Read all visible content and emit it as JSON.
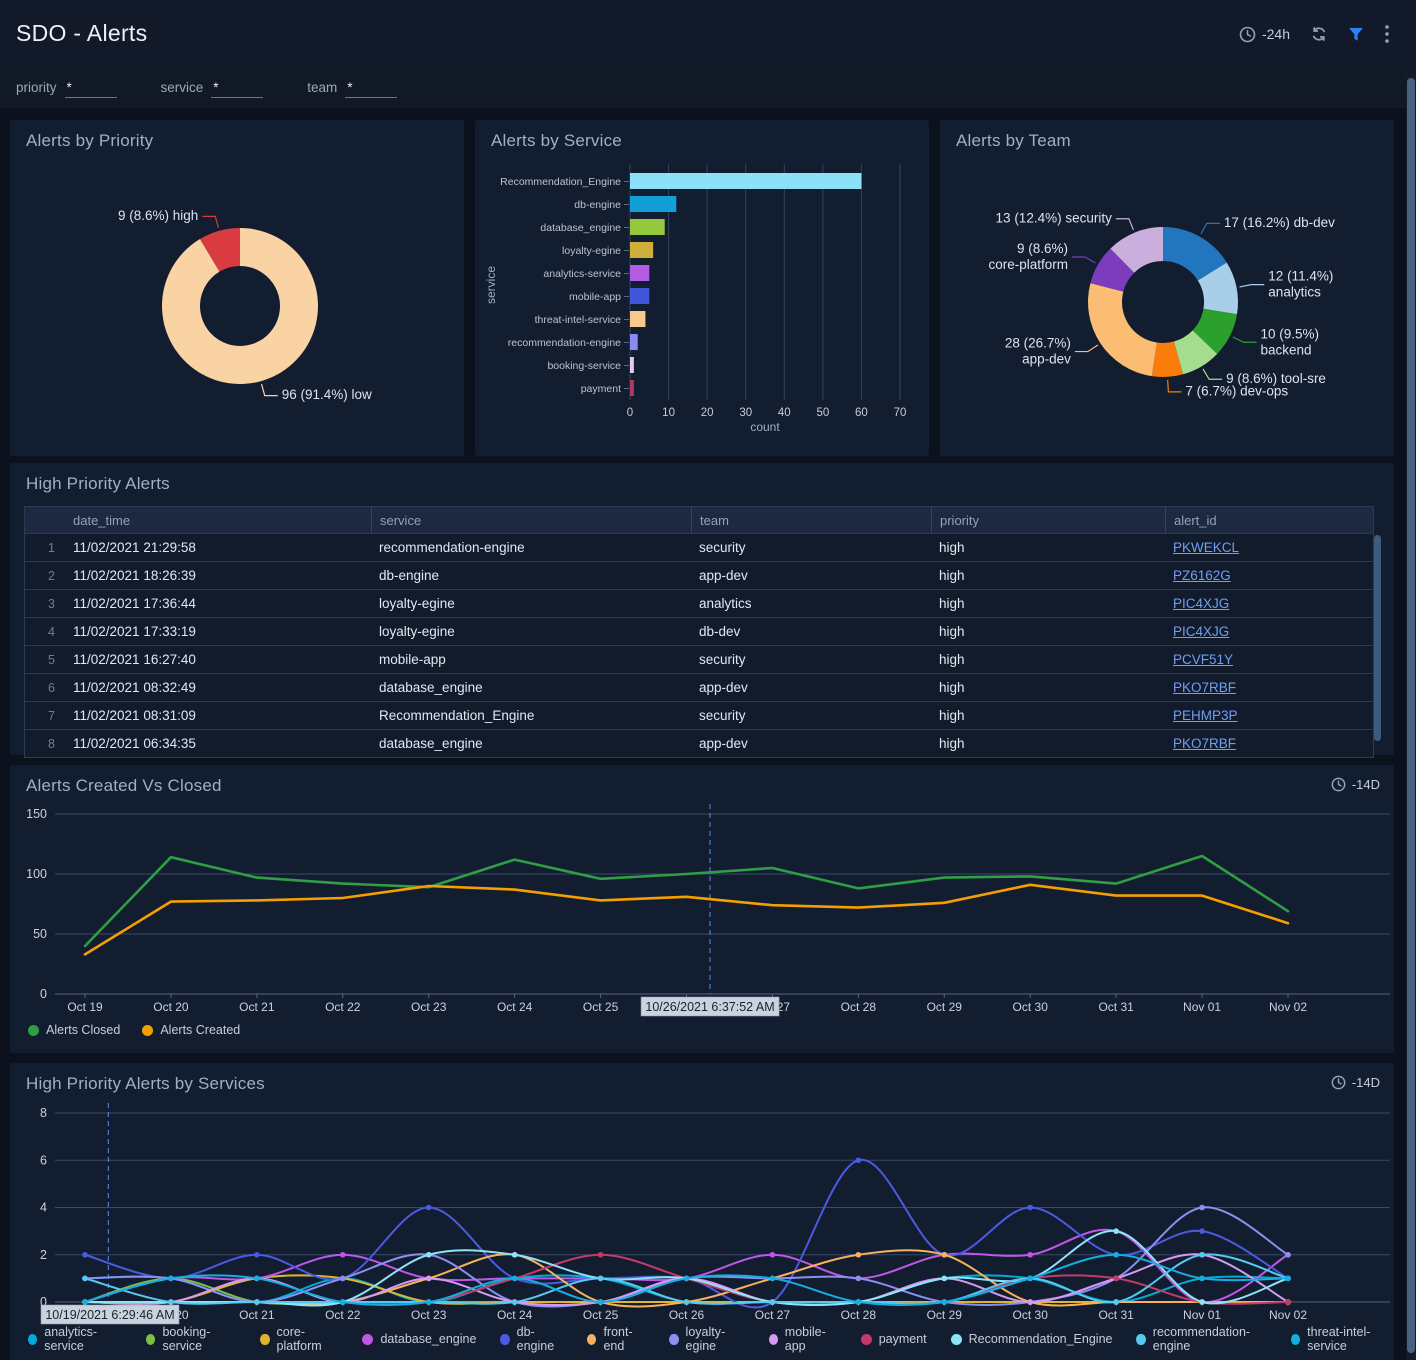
{
  "header": {
    "title": "SDO - Alerts",
    "time_range": "-24h"
  },
  "filters": [
    {
      "name": "priority",
      "label": "priority",
      "value": "*"
    },
    {
      "name": "service",
      "label": "service",
      "value": "*"
    },
    {
      "name": "team",
      "label": "team",
      "value": "*"
    }
  ],
  "table": {
    "title": "High Priority Alerts",
    "columns": [
      "date_time",
      "service",
      "team",
      "priority",
      "alert_id"
    ],
    "rows": [
      [
        "1",
        "11/02/2021 21:29:58",
        "recommendation-engine",
        "security",
        "high",
        "PKWEKCL"
      ],
      [
        "2",
        "11/02/2021 18:26:39",
        "db-engine",
        "app-dev",
        "high",
        "PZ6162G"
      ],
      [
        "3",
        "11/02/2021 17:36:44",
        "loyalty-egine",
        "analytics",
        "high",
        "PIC4XJG"
      ],
      [
        "4",
        "11/02/2021 17:33:19",
        "loyalty-egine",
        "db-dev",
        "high",
        "PIC4XJG"
      ],
      [
        "5",
        "11/02/2021 16:27:40",
        "mobile-app",
        "security",
        "high",
        "PCVF51Y"
      ],
      [
        "6",
        "11/02/2021 08:32:49",
        "database_engine",
        "app-dev",
        "high",
        "PKO7RBF"
      ],
      [
        "7",
        "11/02/2021 08:31:09",
        "Recommendation_Engine",
        "security",
        "high",
        "PEHMP3P"
      ],
      [
        "8",
        "11/02/2021 06:34:35",
        "database_engine",
        "app-dev",
        "high",
        "PKO7RBF"
      ]
    ]
  },
  "chart_data": [
    {
      "id": "priority_donut",
      "type": "pie",
      "title": "Alerts by Priority",
      "segments": [
        {
          "label": "96 (91.4%) low",
          "name": "low",
          "value": 96,
          "color": "#fad3a5"
        },
        {
          "label": "9 (8.6%) high",
          "name": "high",
          "value": 9,
          "color": "#d93b40"
        }
      ]
    },
    {
      "id": "service_bar",
      "type": "bar",
      "title": "Alerts by Service",
      "xlabel": "count",
      "ylabel": "service",
      "xlim": [
        0,
        70
      ],
      "xticks": [
        0,
        10,
        20,
        30,
        40,
        50,
        60,
        70
      ],
      "categories": [
        "Recommendation_Engine",
        "db-engine",
        "database_engine",
        "loyalty-egine",
        "analytics-service",
        "mobile-app",
        "threat-intel-service",
        "recommendation-engine",
        "booking-service",
        "payment"
      ],
      "values": [
        60,
        12,
        9,
        6,
        5,
        5,
        4,
        2,
        1,
        1
      ],
      "colors": [
        "#8ce0f8",
        "#129fd8",
        "#94c83d",
        "#cfae3a",
        "#b55ce5",
        "#4156d8",
        "#f8c98d",
        "#8a8af5",
        "#e3c8f2",
        "#b03a62"
      ]
    },
    {
      "id": "team_donut",
      "type": "pie",
      "title": "Alerts by Team",
      "segments": [
        {
          "label": "17 (16.2%) db-dev",
          "name": "db-dev",
          "value": 17,
          "color": "#2176bd"
        },
        {
          "label": "12 (11.4%)\nanalytics",
          "name": "analytics",
          "value": 12,
          "color": "#a9cfe8"
        },
        {
          "label": "10 (9.5%)\nbackend",
          "name": "backend",
          "value": 10,
          "color": "#2ca02c"
        },
        {
          "label": "9 (8.6%) tool-sre",
          "name": "tool-sre",
          "value": 9,
          "color": "#a5dd8f"
        },
        {
          "label": "7 (6.7%) dev-ops",
          "name": "dev-ops",
          "value": 7,
          "color": "#fa7d09"
        },
        {
          "label": "28 (26.7%)\napp-dev",
          "name": "app-dev",
          "value": 28,
          "color": "#fbbc74"
        },
        {
          "label": "9 (8.6%)\ncore-platform",
          "name": "core-platform",
          "value": 9,
          "color": "#7d3cbd"
        },
        {
          "label": "13 (12.4%) security",
          "name": "security",
          "value": 13,
          "color": "#c9aede"
        }
      ]
    },
    {
      "id": "created_closed",
      "type": "line",
      "title": "Alerts Created Vs Closed",
      "range_label": "-14D",
      "smooth": false,
      "markers": false,
      "ylim": [
        0,
        150
      ],
      "yticks": [
        0,
        50,
        100,
        150
      ],
      "x": [
        "Oct 19",
        "Oct 20",
        "Oct 21",
        "Oct 22",
        "Oct 23",
        "Oct 24",
        "Oct 25",
        "Oct 26",
        "Oct 27",
        "Oct 28",
        "Oct 29",
        "Oct 30",
        "Oct 31",
        "Nov 01",
        "Nov 02"
      ],
      "cursor": {
        "x_index": 7.274,
        "label": "10/26/2021 6:37:52 AM"
      },
      "series": [
        {
          "name": "Alerts Closed",
          "color": "#2f9e44",
          "values": [
            40,
            114,
            97,
            92,
            89,
            112,
            96,
            100,
            105,
            88,
            97,
            98,
            92,
            115,
            69
          ]
        },
        {
          "name": "Alerts Created",
          "color": "#f59f00",
          "values": [
            33,
            77,
            78,
            80,
            90,
            87,
            78,
            81,
            74,
            72,
            76,
            91,
            82,
            82,
            59
          ]
        }
      ]
    },
    {
      "id": "hp_services",
      "type": "line",
      "title": "High Priority Alerts by Services",
      "range_label": "-14D",
      "smooth": true,
      "markers": true,
      "ylim": [
        0,
        8
      ],
      "yticks": [
        0,
        2,
        4,
        6,
        8
      ],
      "x": [
        "Oct 19",
        "Oct 20",
        "Oct 21",
        "Oct 22",
        "Oct 23",
        "Oct 24",
        "Oct 25",
        "Oct 26",
        "Oct 27",
        "Oct 28",
        "Oct 29",
        "Oct 30",
        "Oct 31",
        "Nov 01",
        "Nov 02"
      ],
      "cursor": {
        "x_index": 0.271,
        "label": "10/19/2021 6:29:46 AM"
      },
      "series": [
        {
          "name": "analytics-service",
          "color": "#00acd7",
          "values": [
            1,
            1,
            0,
            1,
            0,
            1,
            1,
            0,
            0,
            0,
            1,
            1,
            0,
            1,
            1
          ]
        },
        {
          "name": "booking-service",
          "color": "#7bc144",
          "values": [
            0,
            1,
            0,
            0,
            0,
            0,
            0,
            0,
            0,
            0,
            0,
            0,
            0,
            0,
            0
          ]
        },
        {
          "name": "core-platform",
          "color": "#ddb52f",
          "values": [
            0,
            0,
            1,
            1,
            0,
            0,
            0,
            0,
            0,
            0,
            0,
            0,
            0,
            0,
            0
          ]
        },
        {
          "name": "database_engine",
          "color": "#c157e8",
          "values": [
            0,
            1,
            1,
            2,
            1,
            1,
            1,
            1,
            2,
            1,
            2,
            2,
            3,
            0,
            2
          ]
        },
        {
          "name": "db-engine",
          "color": "#4a5be0",
          "values": [
            2,
            1,
            2,
            1,
            4,
            1,
            1,
            1,
            0,
            6,
            2,
            4,
            2,
            3,
            1
          ]
        },
        {
          "name": "front-end",
          "color": "#f7b15c",
          "values": [
            0,
            0,
            0,
            0,
            1,
            2,
            0,
            0,
            1,
            2,
            2,
            0,
            0,
            0,
            0
          ]
        },
        {
          "name": "loyalty-egine",
          "color": "#8b8ff0",
          "values": [
            1,
            1,
            0,
            1,
            2,
            0,
            0,
            1,
            1,
            1,
            0,
            0,
            1,
            4,
            2
          ]
        },
        {
          "name": "mobile-app",
          "color": "#d79af2",
          "values": [
            0,
            0,
            1,
            0,
            1,
            0,
            0,
            1,
            0,
            0,
            1,
            0,
            1,
            2,
            0
          ]
        },
        {
          "name": "payment",
          "color": "#c23b68",
          "values": [
            0,
            0,
            0,
            0,
            0,
            1,
            2,
            1,
            0,
            0,
            0,
            1,
            1,
            0,
            0
          ]
        },
        {
          "name": "Recommendation_Engine",
          "color": "#8fe3f7",
          "values": [
            0,
            0,
            0,
            0,
            2,
            2,
            1,
            1,
            0,
            0,
            1,
            1,
            3,
            0,
            1
          ]
        },
        {
          "name": "recommendation-engine",
          "color": "#56c9f0",
          "values": [
            1,
            0,
            0,
            0,
            0,
            0,
            1,
            0,
            0,
            0,
            0,
            1,
            0,
            2,
            1
          ]
        },
        {
          "name": "threat-intel-service",
          "color": "#14aee3",
          "values": [
            0,
            1,
            1,
            0,
            0,
            1,
            0,
            1,
            1,
            0,
            0,
            1,
            2,
            1,
            1
          ]
        }
      ]
    }
  ]
}
